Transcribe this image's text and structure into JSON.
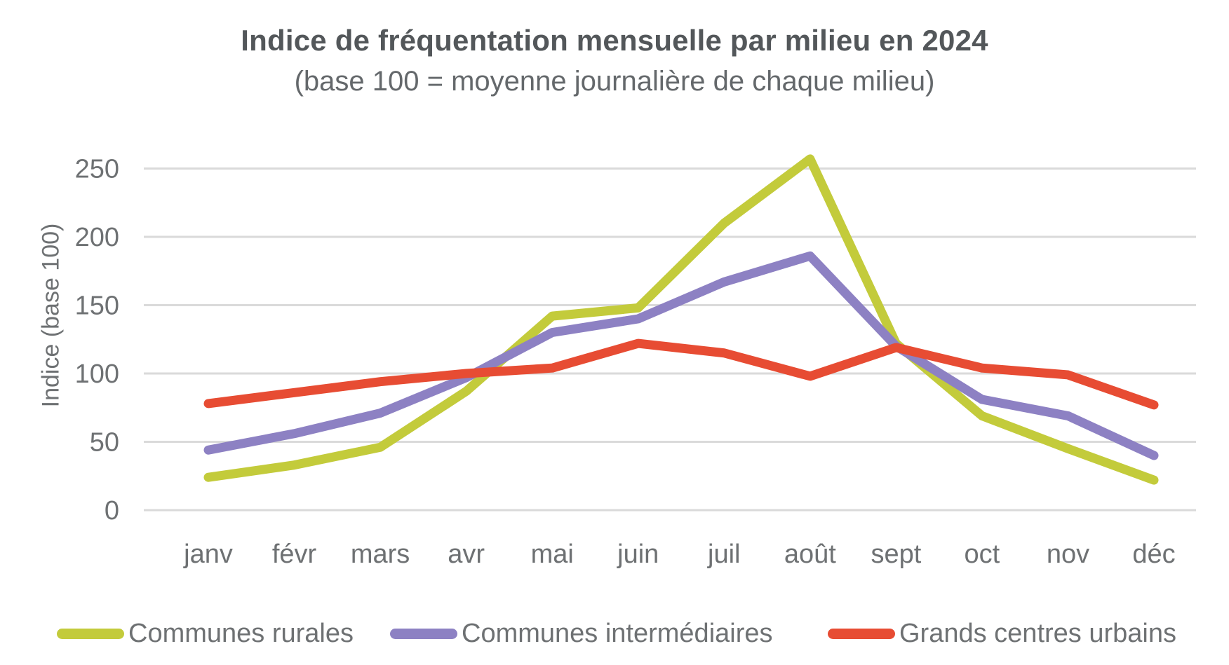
{
  "header": {
    "title": "Indice de fréquentation mensuelle par milieu en 2024",
    "subtitle": "(base 100 = moyenne journalière de chaque milieu)"
  },
  "chart_data": {
    "type": "line",
    "title": "Indice de fréquentation mensuelle par milieu en 2024",
    "subtitle": "(base 100 = moyenne journalière de chaque milieu)",
    "xlabel": "",
    "ylabel": "Indice (base 100)",
    "ylim": [
      0,
      250
    ],
    "yticks": [
      0,
      50,
      100,
      150,
      200,
      250
    ],
    "grid": true,
    "legend_position": "bottom",
    "categories": [
      "janv",
      "févr",
      "mars",
      "avr",
      "mai",
      "juin",
      "juil",
      "août",
      "sept",
      "oct",
      "nov",
      "déc"
    ],
    "series": [
      {
        "name": "Communes rurales",
        "color": "#c3cb3b",
        "values": [
          24,
          33,
          46,
          87,
          142,
          148,
          210,
          257,
          122,
          69,
          45,
          22
        ]
      },
      {
        "name": "Communes intermédiaires",
        "color": "#8d81c3",
        "values": [
          44,
          56,
          71,
          97,
          130,
          140,
          167,
          186,
          120,
          81,
          69,
          40
        ]
      },
      {
        "name": "Grands centres urbains",
        "color": "#e74c33",
        "values": [
          78,
          86,
          94,
          100,
          104,
          122,
          115,
          98,
          119,
          104,
          99,
          77
        ]
      }
    ],
    "gridline_color": "#dadada",
    "axis_text_color": "#6e7173"
  }
}
